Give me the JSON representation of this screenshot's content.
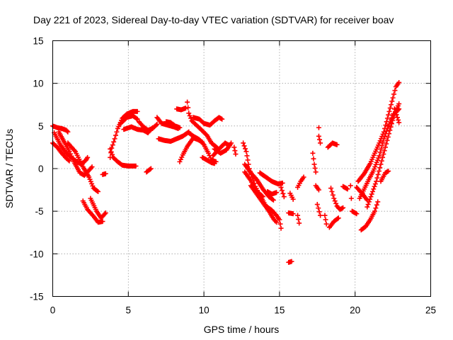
{
  "chart_data": {
    "type": "scatter",
    "title": "Day 221 of 2023, Sidereal Day-to-day VTEC variation (SDTVAR) for receiver boav",
    "xlabel": "GPS time / hours",
    "ylabel": "SDTVAR / TECUs",
    "xlim": [
      0,
      25
    ],
    "ylim": [
      -15,
      15
    ],
    "xticks": [
      0,
      5,
      10,
      15,
      20,
      25
    ],
    "yticks": [
      -15,
      -10,
      -5,
      0,
      5,
      10,
      15
    ],
    "xtick_labels": [
      "0",
      "5",
      "10",
      "15",
      "20",
      "25"
    ],
    "ytick_labels": [
      "-15",
      "-10",
      "-5",
      "0",
      "5",
      "10",
      "15"
    ],
    "grid": true,
    "marker": "+",
    "color": "#ff0000",
    "segments": [
      [
        [
          0.0,
          5.0
        ],
        [
          0.3,
          4.8
        ],
        [
          0.6,
          4.7
        ],
        [
          0.9,
          4.5
        ],
        [
          1.0,
          4.3
        ]
      ],
      [
        [
          0.0,
          3.0
        ],
        [
          0.3,
          2.5
        ],
        [
          0.6,
          1.8
        ],
        [
          0.9,
          1.2
        ],
        [
          1.1,
          0.9
        ]
      ],
      [
        [
          0.1,
          4.2
        ],
        [
          0.5,
          2.8
        ],
        [
          0.9,
          1.8
        ],
        [
          1.3,
          1.2
        ],
        [
          1.6,
          0.8
        ],
        [
          1.9,
          0.5
        ],
        [
          2.2,
          1.0
        ],
        [
          2.3,
          1.3
        ]
      ],
      [
        [
          0.4,
          4.3
        ],
        [
          0.8,
          3.0
        ],
        [
          1.1,
          2.0
        ],
        [
          1.3,
          1.2
        ]
      ],
      [
        [
          1.0,
          3.0
        ],
        [
          1.5,
          2.0
        ],
        [
          2.0,
          0.2
        ],
        [
          2.4,
          -1.0
        ],
        [
          2.7,
          -2.3
        ],
        [
          3.0,
          -2.7
        ]
      ],
      [
        [
          1.4,
          0.8
        ],
        [
          1.8,
          -0.5
        ],
        [
          2.1,
          -0.8
        ],
        [
          2.4,
          -0.2
        ],
        [
          2.6,
          0.2
        ]
      ],
      [
        [
          2.0,
          -3.8
        ],
        [
          2.3,
          -4.8
        ],
        [
          2.7,
          -5.6
        ],
        [
          3.0,
          -6.3
        ],
        [
          3.3,
          -6.2
        ]
      ],
      [
        [
          2.5,
          -3.5
        ],
        [
          2.9,
          -5.0
        ],
        [
          3.2,
          -5.8
        ],
        [
          3.5,
          -5.2
        ]
      ],
      [
        [
          3.3,
          -0.7
        ],
        [
          3.5,
          -0.6
        ]
      ],
      [
        [
          3.8,
          1.3
        ],
        [
          3.9,
          2.4
        ],
        [
          4.1,
          3.5
        ],
        [
          4.3,
          4.7
        ],
        [
          4.6,
          5.9
        ],
        [
          4.9,
          6.4
        ],
        [
          5.3,
          6.7
        ],
        [
          5.6,
          6.7
        ]
      ],
      [
        [
          3.8,
          2.3
        ],
        [
          4.0,
          1.3
        ],
        [
          4.3,
          0.8
        ],
        [
          4.6,
          0.4
        ],
        [
          5.0,
          0.3
        ],
        [
          5.5,
          0.3
        ]
      ],
      [
        [
          4.5,
          5.3
        ],
        [
          4.9,
          6.0
        ],
        [
          5.3,
          6.2
        ],
        [
          5.6,
          5.8
        ]
      ],
      [
        [
          4.7,
          4.6
        ],
        [
          5.2,
          4.9
        ],
        [
          5.6,
          4.6
        ],
        [
          6.0,
          4.5
        ],
        [
          6.3,
          4.2
        ],
        [
          6.6,
          4.8
        ]
      ],
      [
        [
          5.7,
          5.5
        ],
        [
          6.0,
          4.9
        ],
        [
          6.3,
          4.5
        ],
        [
          6.6,
          4.7
        ],
        [
          6.9,
          5.2
        ]
      ],
      [
        [
          6.2,
          -0.4
        ],
        [
          6.5,
          0.0
        ]
      ],
      [
        [
          6.9,
          6.0
        ],
        [
          7.2,
          5.3
        ],
        [
          7.6,
          5.1
        ],
        [
          8.0,
          4.9
        ],
        [
          8.3,
          4.7
        ]
      ],
      [
        [
          7.0,
          3.5
        ],
        [
          7.4,
          3.3
        ],
        [
          7.8,
          3.2
        ],
        [
          8.2,
          3.5
        ],
        [
          8.6,
          3.8
        ],
        [
          9.0,
          4.3
        ]
      ],
      [
        [
          7.5,
          5.5
        ],
        [
          7.8,
          5.4
        ],
        [
          8.1,
          5.0
        ],
        [
          8.4,
          4.8
        ]
      ],
      [
        [
          8.2,
          7.0
        ],
        [
          8.5,
          6.9
        ],
        [
          8.8,
          7.1
        ]
      ],
      [
        [
          8.4,
          0.8
        ],
        [
          8.6,
          1.6
        ],
        [
          8.9,
          2.6
        ],
        [
          9.3,
          3.6
        ],
        [
          9.6,
          3.4
        ],
        [
          9.9,
          3.1
        ]
      ],
      [
        [
          8.9,
          7.8
        ],
        [
          9.0,
          6.5
        ],
        [
          9.2,
          5.6
        ],
        [
          9.5,
          5.1
        ],
        [
          9.8,
          4.6
        ],
        [
          10.2,
          3.9
        ],
        [
          10.5,
          3.0
        ],
        [
          10.9,
          2.4
        ]
      ],
      [
        [
          9.3,
          6.0
        ],
        [
          9.7,
          5.8
        ],
        [
          10.0,
          5.3
        ],
        [
          10.4,
          5.1
        ],
        [
          10.7,
          5.6
        ],
        [
          11.0,
          6.0
        ],
        [
          11.2,
          5.8
        ]
      ],
      [
        [
          9.0,
          4.2
        ],
        [
          9.3,
          3.8
        ],
        [
          9.7,
          3.4
        ],
        [
          10.0,
          2.8
        ],
        [
          10.3,
          1.8
        ],
        [
          10.5,
          1.0
        ],
        [
          10.8,
          0.8
        ]
      ],
      [
        [
          9.9,
          1.3
        ],
        [
          10.2,
          1.0
        ],
        [
          10.5,
          0.7
        ],
        [
          10.7,
          0.6
        ]
      ],
      [
        [
          10.6,
          1.5
        ],
        [
          11.0,
          2.3
        ],
        [
          11.4,
          3.0
        ],
        [
          11.7,
          2.7
        ]
      ],
      [
        [
          10.7,
          2.3
        ],
        [
          11.1,
          1.8
        ],
        [
          11.5,
          2.2
        ],
        [
          11.8,
          3.0
        ]
      ],
      [
        [
          12.0,
          2.5
        ],
        [
          12.1,
          1.7
        ]
      ],
      [
        [
          12.6,
          3.0
        ],
        [
          12.8,
          2.0
        ],
        [
          12.9,
          1.0
        ],
        [
          13.0,
          0.0
        ],
        [
          13.2,
          -1.0
        ],
        [
          13.4,
          -2.1
        ],
        [
          13.6,
          -2.8
        ],
        [
          13.9,
          -3.3
        ]
      ],
      [
        [
          12.7,
          0.5
        ],
        [
          13.1,
          -0.5
        ],
        [
          13.5,
          -1.3
        ],
        [
          13.9,
          -2.4
        ],
        [
          14.3,
          -3.3
        ],
        [
          14.6,
          -3.7
        ]
      ],
      [
        [
          12.7,
          -0.4
        ],
        [
          13.1,
          -1.4
        ],
        [
          13.4,
          -2.4
        ],
        [
          13.8,
          -3.4
        ],
        [
          14.1,
          -4.4
        ],
        [
          14.5,
          -4.9
        ],
        [
          14.8,
          -5.5
        ],
        [
          15.0,
          -6.0
        ],
        [
          15.1,
          -7.0
        ]
      ],
      [
        [
          13.1,
          -2.0
        ],
        [
          13.5,
          -3.0
        ],
        [
          13.9,
          -4.0
        ],
        [
          14.3,
          -5.0
        ],
        [
          14.6,
          -5.9
        ],
        [
          14.8,
          -6.3
        ]
      ],
      [
        [
          13.7,
          -0.5
        ],
        [
          14.1,
          -1.0
        ],
        [
          14.5,
          -1.5
        ],
        [
          14.9,
          -1.8
        ],
        [
          15.2,
          -1.7
        ]
      ],
      [
        [
          14.2,
          -2.7
        ],
        [
          14.5,
          -3.0
        ],
        [
          14.8,
          -2.8
        ]
      ],
      [
        [
          15.1,
          -2.2
        ],
        [
          15.3,
          -3.3
        ]
      ],
      [
        [
          15.7,
          -2.9
        ],
        [
          15.9,
          -3.6
        ]
      ],
      [
        [
          15.6,
          -5.2
        ],
        [
          15.9,
          -5.3
        ]
      ],
      [
        [
          15.6,
          -11.0
        ],
        [
          15.8,
          -10.9
        ]
      ],
      [
        [
          16.2,
          -5.5
        ],
        [
          16.3,
          -6.4
        ]
      ],
      [
        [
          16.2,
          -2.2
        ],
        [
          16.4,
          -1.5
        ],
        [
          16.6,
          -1.0
        ]
      ],
      [
        [
          17.6,
          4.8
        ],
        [
          17.6,
          3.8
        ],
        [
          17.7,
          3.0
        ]
      ],
      [
        [
          17.2,
          1.8
        ],
        [
          17.3,
          0.5
        ],
        [
          17.4,
          -0.4
        ]
      ],
      [
        [
          17.4,
          -2.0
        ],
        [
          17.6,
          -2.5
        ]
      ],
      [
        [
          17.5,
          -4.2
        ],
        [
          17.7,
          -5.5
        ]
      ],
      [
        [
          18.0,
          -5.5
        ],
        [
          18.1,
          -6.5
        ]
      ],
      [
        [
          18.3,
          -6.9
        ],
        [
          18.6,
          -6.2
        ],
        [
          18.9,
          -5.8
        ]
      ],
      [
        [
          18.2,
          2.5
        ],
        [
          18.5,
          3.0
        ],
        [
          18.8,
          2.8
        ]
      ],
      [
        [
          18.4,
          -2.3
        ],
        [
          18.6,
          -3.5
        ],
        [
          18.8,
          -4.4
        ],
        [
          19.0,
          -4.8
        ],
        [
          19.2,
          -4.6
        ]
      ],
      [
        [
          19.2,
          -2.1
        ],
        [
          19.5,
          -2.4
        ]
      ],
      [
        [
          19.7,
          -2.0
        ],
        [
          19.8,
          -5.0
        ],
        [
          20.1,
          -5.3
        ]
      ],
      [
        [
          20.1,
          -2.2
        ],
        [
          20.5,
          -3.0
        ],
        [
          20.8,
          -3.7
        ]
      ],
      [
        [
          20.2,
          -1.5
        ],
        [
          20.6,
          -0.6
        ],
        [
          21.0,
          0.6
        ],
        [
          21.3,
          1.8
        ],
        [
          21.6,
          3.0
        ],
        [
          21.9,
          4.3
        ],
        [
          22.2,
          6.3
        ],
        [
          22.5,
          8.3
        ],
        [
          22.7,
          9.6
        ],
        [
          22.9,
          10.1
        ]
      ],
      [
        [
          20.3,
          -3.5
        ],
        [
          20.6,
          -2.4
        ],
        [
          20.9,
          -1.3
        ],
        [
          21.2,
          -0.3
        ],
        [
          21.6,
          1.5
        ],
        [
          21.9,
          3.5
        ],
        [
          22.2,
          5.0
        ],
        [
          22.5,
          6.2
        ],
        [
          22.9,
          7.0
        ]
      ],
      [
        [
          20.4,
          -7.2
        ],
        [
          20.7,
          -6.8
        ],
        [
          21.0,
          -6.0
        ],
        [
          21.3,
          -5.0
        ],
        [
          21.5,
          -3.9
        ]
      ],
      [
        [
          20.8,
          -4.5
        ],
        [
          21.1,
          -3.0
        ],
        [
          21.4,
          -1.5
        ],
        [
          21.7,
          0.5
        ],
        [
          22.0,
          2.5
        ],
        [
          22.3,
          4.5
        ],
        [
          22.6,
          6.4
        ],
        [
          22.9,
          7.6
        ]
      ],
      [
        [
          21.7,
          -1.5
        ],
        [
          22.0,
          -0.5
        ],
        [
          22.2,
          -0.3
        ]
      ],
      [
        [
          22.4,
          5.3
        ],
        [
          22.6,
          7.0
        ],
        [
          22.8,
          6.0
        ],
        [
          22.9,
          5.4
        ]
      ]
    ]
  }
}
